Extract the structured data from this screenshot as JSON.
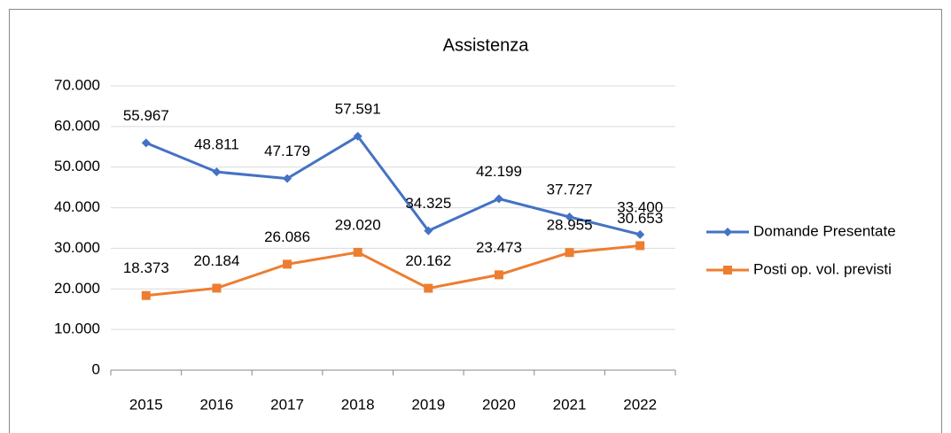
{
  "chart_data": {
    "type": "line",
    "title": "Assistenza",
    "categories": [
      "2015",
      "2016",
      "2017",
      "2018",
      "2019",
      "2020",
      "2021",
      "2022"
    ],
    "series": [
      {
        "name": "Domande Presentate",
        "color": "#4472c4",
        "marker": "diamond",
        "values": [
          55967,
          48811,
          47179,
          57591,
          34325,
          42199,
          37727,
          33400
        ],
        "value_labels": [
          "55.967",
          "48.811",
          "47.179",
          "57.591",
          "34.325",
          "42.199",
          "37.727",
          "33.400"
        ]
      },
      {
        "name": "Posti op. vol. previsti",
        "color": "#ed7d31",
        "marker": "square",
        "values": [
          18373,
          20184,
          26086,
          29020,
          20162,
          23473,
          28955,
          30653
        ],
        "value_labels": [
          "18.373",
          "20.184",
          "26.086",
          "29.020",
          "20.162",
          "23.473",
          "28.955",
          "30.653"
        ]
      }
    ],
    "ylim": [
      0,
      70000
    ],
    "yticks": [
      0,
      {
        "value": 10000,
        "label": "10.000"
      },
      {
        "value": 20000,
        "label": "20.000"
      },
      {
        "value": 30000,
        "label": "30.000"
      },
      {
        "value": 40000,
        "label": "40.000"
      },
      {
        "value": 50000,
        "label": "50.000"
      },
      {
        "value": 60000,
        "label": "60.000"
      },
      {
        "value": 70000,
        "label": "70.000"
      }
    ],
    "grid": true,
    "legend": "right"
  }
}
